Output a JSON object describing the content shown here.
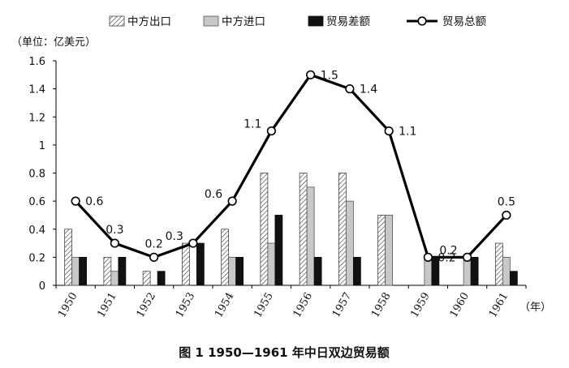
{
  "chart_data": {
    "type": "bar",
    "unit_label": "（单位：亿美元）",
    "x_unit_label": "（年）",
    "caption": "图 1   1950—1961 年中日双边贸易额",
    "categories": [
      "1950",
      "1951",
      "1952",
      "1953",
      "1954",
      "1955",
      "1956",
      "1957",
      "1958",
      "1959",
      "1960",
      "1961"
    ],
    "ylim": [
      0,
      1.6
    ],
    "yticks": [
      "0",
      "0.2",
      "0.4",
      "0.6",
      "0.8",
      "1",
      "1.2",
      "1.4",
      "1.6"
    ],
    "grid": false,
    "legend_position": "top",
    "series": [
      {
        "name": "中方出口",
        "kind": "bar",
        "style": "hatched",
        "values": [
          0.4,
          0.2,
          0.1,
          0.3,
          0.4,
          0.8,
          0.8,
          0.8,
          0.5,
          0.0,
          0.0,
          0.3
        ]
      },
      {
        "name": "中方进口",
        "kind": "bar",
        "style": "gray",
        "values": [
          0.2,
          0.1,
          0.0,
          0.0,
          0.2,
          0.3,
          0.7,
          0.6,
          0.5,
          0.2,
          0.2,
          0.2
        ]
      },
      {
        "name": "贸易差额",
        "kind": "bar",
        "style": "black",
        "values": [
          0.2,
          0.2,
          0.1,
          0.3,
          0.2,
          0.5,
          0.2,
          0.2,
          0.0,
          0.2,
          0.2,
          0.1
        ]
      },
      {
        "name": "贸易总额",
        "kind": "line",
        "style": "line-circle",
        "values": [
          0.6,
          0.3,
          0.2,
          0.3,
          0.6,
          1.1,
          1.5,
          1.4,
          1.1,
          0.2,
          0.2,
          0.5
        ],
        "labels": [
          "0.6",
          "0.3",
          "0.2",
          "0.3",
          "0.6",
          "1.1",
          "1.5",
          "1.4",
          "1.1",
          "0.2",
          "0.2",
          "0.5"
        ],
        "label_sides": [
          "right",
          "above",
          "above",
          "left",
          "left",
          "left",
          "right",
          "right",
          "right",
          "right",
          "left",
          "above"
        ]
      }
    ]
  }
}
